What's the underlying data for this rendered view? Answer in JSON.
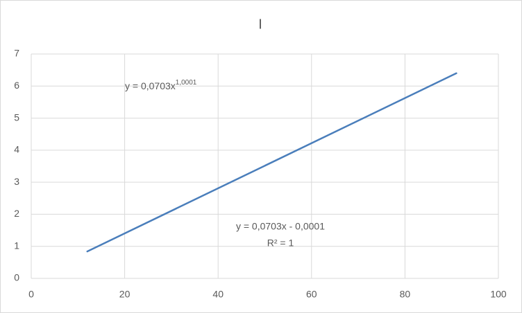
{
  "chart_data": {
    "type": "line",
    "title": "I",
    "x": [
      12,
      91
    ],
    "series": [
      {
        "name": null,
        "color": "#4a7ebb",
        "values": [
          0.84,
          6.4
        ]
      }
    ],
    "xlim": [
      0,
      100
    ],
    "xticks": [
      0,
      20,
      40,
      60,
      80,
      100
    ],
    "ylim": [
      0,
      7
    ],
    "yticks": [
      0,
      1,
      2,
      3,
      4,
      5,
      6,
      7
    ],
    "grid": true,
    "annotations": {
      "power_trendline": {
        "base": "y = 0,0703x",
        "exponent": "1,0001"
      },
      "linear_trendline": {
        "equation": "y = 0,0703x - 0,0001",
        "r_squared": "R² = 1"
      }
    }
  }
}
